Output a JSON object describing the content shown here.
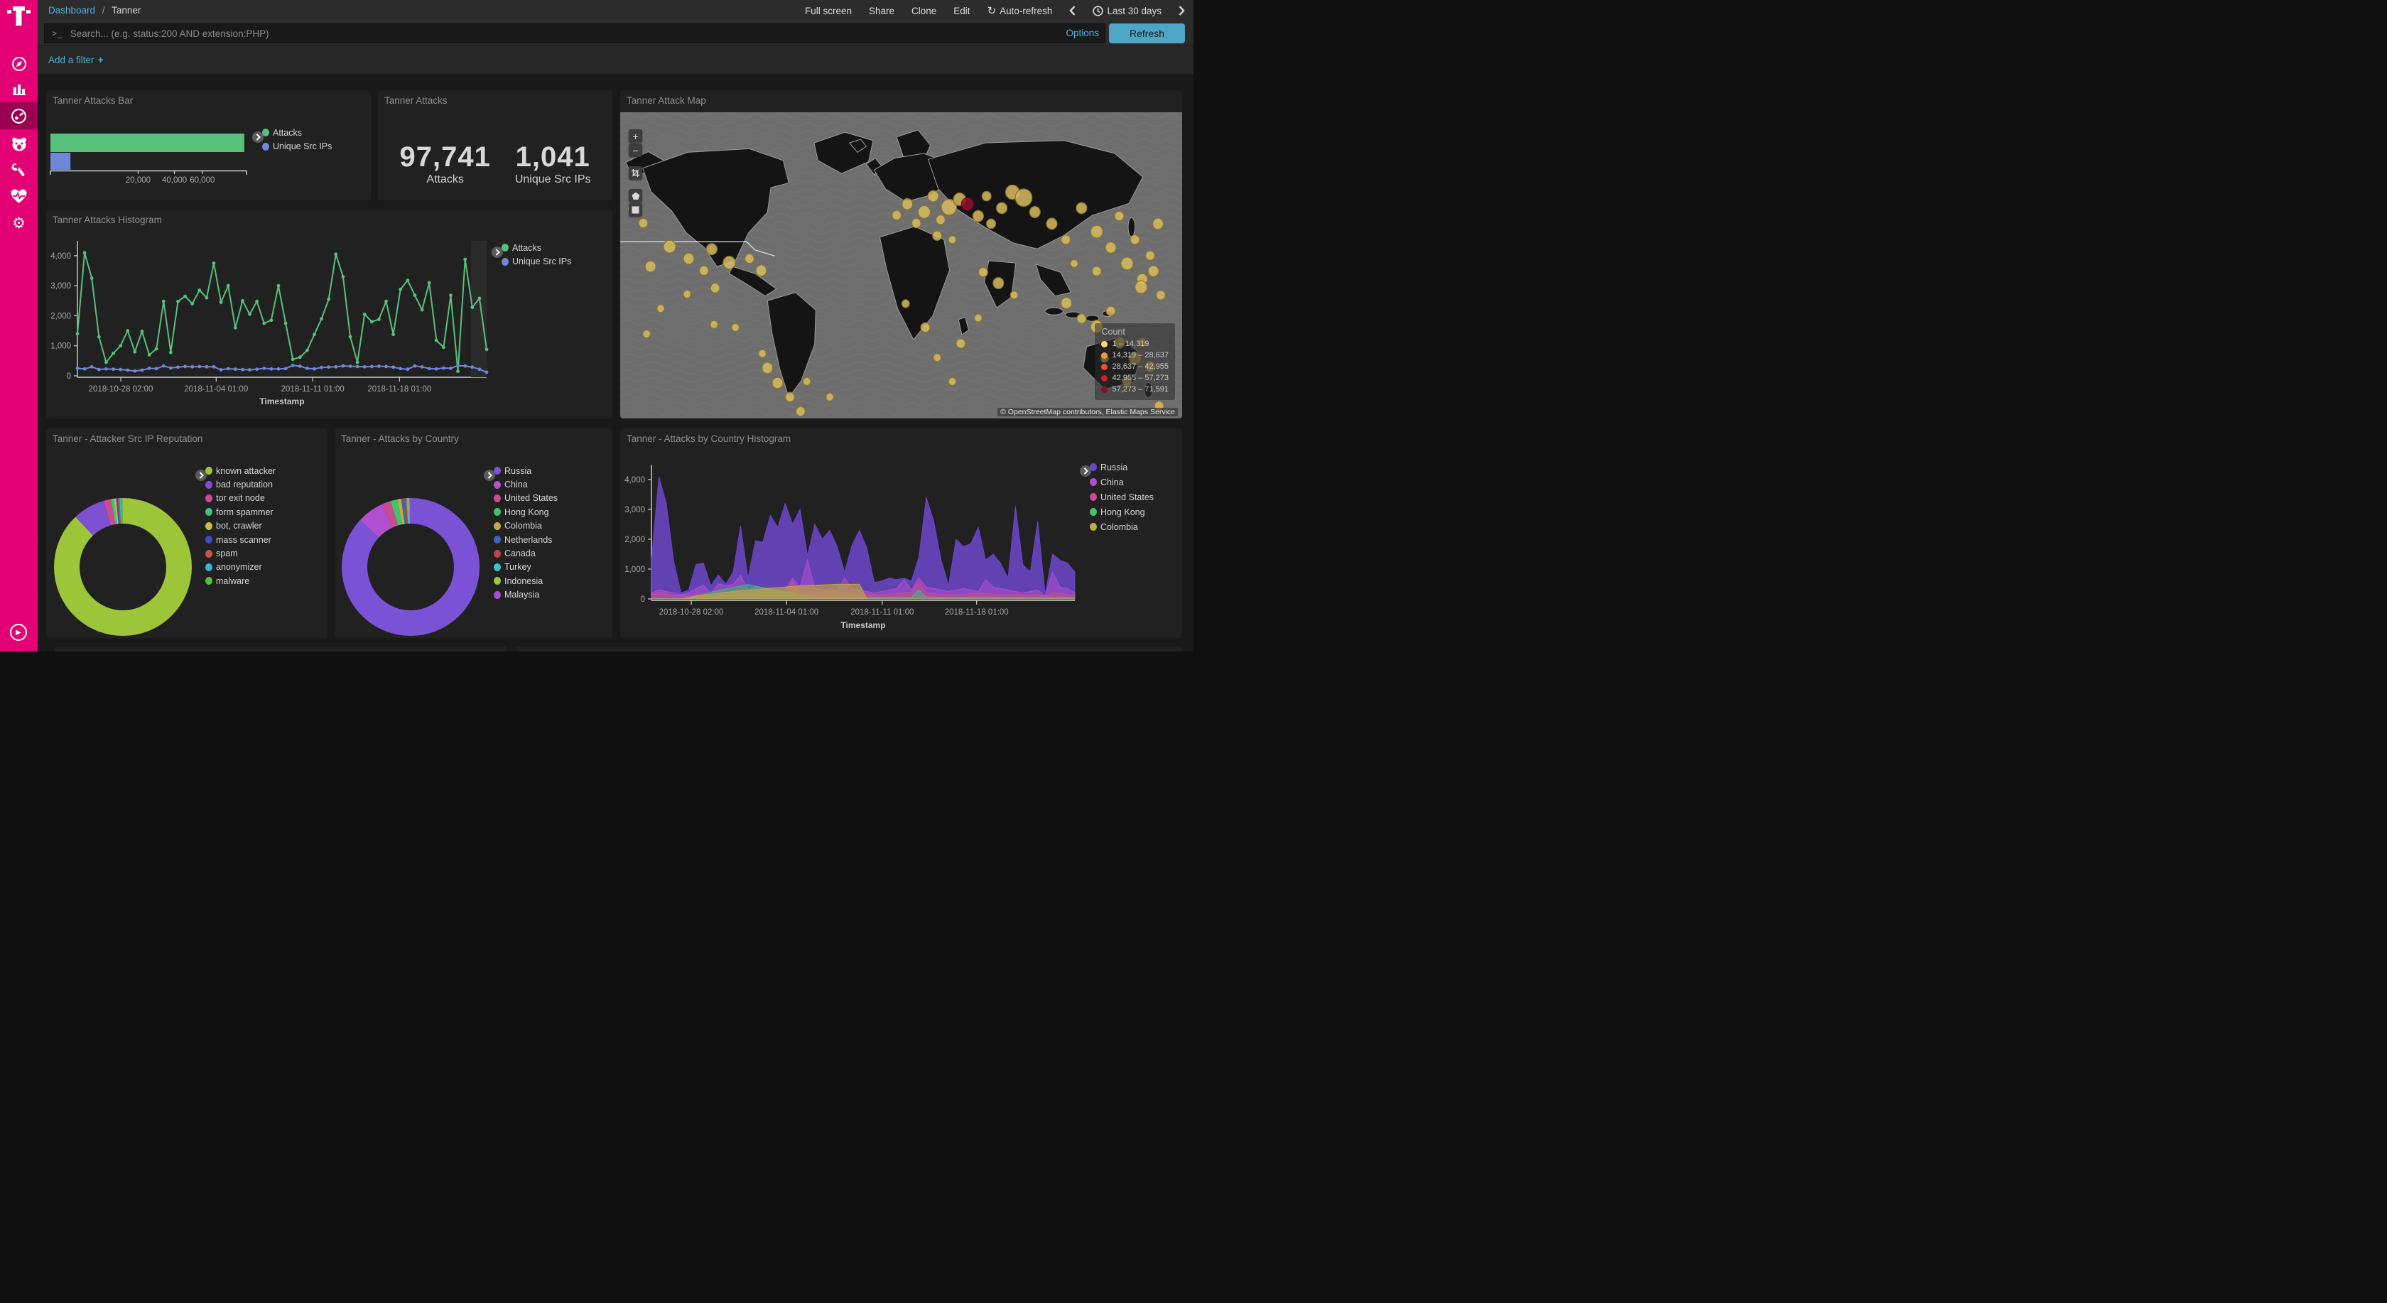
{
  "sidebar": {
    "brand": "T-Mobile",
    "items": [
      {
        "name": "discover",
        "icon": "compass-icon"
      },
      {
        "name": "visualize",
        "icon": "bar-chart-icon"
      },
      {
        "name": "dashboard",
        "icon": "gauge-icon",
        "active": true
      },
      {
        "name": "app-bear",
        "icon": "bear-icon"
      },
      {
        "name": "dev-tools",
        "icon": "wrench-icon"
      },
      {
        "name": "monitoring",
        "icon": "heartbeat-icon"
      },
      {
        "name": "management",
        "icon": "gear-icon"
      }
    ],
    "collapse": "play-icon"
  },
  "topbar": {
    "breadcrumb": {
      "root": "Dashboard",
      "sep": "/",
      "current": "Tanner"
    },
    "menu": [
      "Full screen",
      "Share",
      "Clone",
      "Edit"
    ],
    "auto_refresh": "Auto-refresh",
    "time_range": "Last 30 days"
  },
  "search": {
    "prompt": ">_",
    "placeholder": "Search... (e.g. status:200 AND extension:PHP)",
    "options_label": "Options",
    "refresh_label": "Refresh"
  },
  "filter_bar": {
    "add_filter_label": "Add a filter",
    "plus": "+"
  },
  "panels": {
    "bar_title": "Tanner Attacks Bar",
    "metric_title": "Tanner Attacks",
    "map_title": "Tanner Attack Map",
    "hist_title": "Tanner Attacks Histogram",
    "pie1_title": "Tanner - Attacker Src IP Reputation",
    "pie2_title": "Tanner - Attacks by Country",
    "area_title": "Tanner - Attacks by Country Histogram"
  },
  "colors": {
    "accent": "#e20074",
    "link": "#4fb0d6",
    "refresh_btn": "#4fa5c5",
    "attacks": "#57c17b",
    "unique": "#6f87d8"
  },
  "chart_data": {
    "attacks_bar": {
      "type": "bar",
      "orientation": "horizontal",
      "scale": "sqrt",
      "xmax": 100000,
      "series": [
        {
          "name": "Attacks",
          "color": "#57c17b",
          "value": 97741
        },
        {
          "name": "Unique Src IPs",
          "color": "#6f87d8",
          "value": 1041
        }
      ],
      "xticks": [
        {
          "label": "20,000",
          "value": 20000
        },
        {
          "label": "40,000",
          "value": 40000
        },
        {
          "label": "60,000",
          "value": 60000
        }
      ]
    },
    "attacks_metric": {
      "type": "metric",
      "items": [
        {
          "value": "97,741",
          "label": "Attacks"
        },
        {
          "value": "1,041",
          "label": "Unique Src IPs"
        }
      ]
    },
    "attack_map": {
      "type": "map",
      "legend_title": "Count",
      "legend": [
        {
          "label": "1 – 14,319",
          "color": "#f2d977"
        },
        {
          "label": "14,319 – 28,637",
          "color": "#f59742"
        },
        {
          "label": "28,637 – 42,955",
          "color": "#f04e33"
        },
        {
          "label": "42,955 – 57,273",
          "color": "#cc1f2e"
        },
        {
          "label": "57,273 – 71,591",
          "color": "#8d0d22"
        }
      ],
      "attribution": "© OpenStreetMap contributors, Elastic Maps Service",
      "bubbles": [
        [
          2,
          31.5,
          5
        ],
        [
          4.1,
          36.2,
          6
        ],
        [
          5.4,
          50.4,
          7
        ],
        [
          8.8,
          43.9,
          8
        ],
        [
          12.2,
          47.8,
          7
        ],
        [
          14.9,
          51.7,
          6
        ],
        [
          16.3,
          44.7,
          7
        ],
        [
          19.4,
          49.1,
          8
        ],
        [
          23,
          47.8,
          6
        ],
        [
          25.1,
          51.7,
          7
        ],
        [
          16.9,
          57.4,
          6
        ],
        [
          11.9,
          59.4,
          5
        ],
        [
          7.2,
          64.1,
          5
        ],
        [
          4.7,
          72.4,
          5
        ],
        [
          16.7,
          69.3,
          5
        ],
        [
          20.5,
          70.3,
          5
        ],
        [
          25.3,
          78.8,
          5
        ],
        [
          26.2,
          83.5,
          7
        ],
        [
          28,
          88.4,
          7
        ],
        [
          30.2,
          93,
          6
        ],
        [
          32.1,
          97.7,
          6
        ],
        [
          33.2,
          87.9,
          5
        ],
        [
          37.3,
          93,
          5
        ],
        [
          49.2,
          33.6,
          6
        ],
        [
          51.1,
          30,
          7
        ],
        [
          52.7,
          36.2,
          6
        ],
        [
          54.1,
          32.6,
          8
        ],
        [
          55.7,
          27.4,
          7
        ],
        [
          57,
          35.1,
          6
        ],
        [
          58.5,
          31,
          10
        ],
        [
          60.4,
          28.4,
          8
        ],
        [
          61.8,
          30,
          8,
          "#8e0f2e"
        ],
        [
          63.7,
          33.9,
          7
        ],
        [
          65.2,
          27.4,
          6
        ],
        [
          66,
          36.4,
          6
        ],
        [
          67.9,
          31.3,
          7
        ],
        [
          69.8,
          26.1,
          9
        ],
        [
          71.8,
          27.9,
          11
        ],
        [
          73.8,
          32.6,
          7
        ],
        [
          56.4,
          40.3,
          6
        ],
        [
          59.1,
          41.6,
          5
        ],
        [
          50.8,
          62.5,
          5
        ],
        [
          54.3,
          70.3,
          6
        ],
        [
          56.4,
          80.1,
          5
        ],
        [
          59.1,
          87.9,
          5
        ],
        [
          60.6,
          75.5,
          6
        ],
        [
          63.7,
          67.2,
          5
        ],
        [
          64.6,
          52.2,
          6
        ],
        [
          67.3,
          55.8,
          7
        ],
        [
          70.1,
          59.7,
          5
        ],
        [
          76.8,
          36.4,
          7
        ],
        [
          79.3,
          41.6,
          6
        ],
        [
          82.1,
          31.3,
          7
        ],
        [
          84.8,
          39,
          8
        ],
        [
          87.3,
          44.2,
          7
        ],
        [
          88.8,
          33.9,
          6
        ],
        [
          90.2,
          49.4,
          8
        ],
        [
          91.6,
          41.6,
          6
        ],
        [
          92.9,
          54.5,
          7
        ],
        [
          94.3,
          46.8,
          6
        ],
        [
          95.7,
          36.4,
          7
        ],
        [
          84.8,
          51.9,
          6
        ],
        [
          80.8,
          49.4,
          5
        ],
        [
          79.4,
          62.3,
          7
        ],
        [
          82.1,
          67.4,
          6
        ],
        [
          84.8,
          70,
          8
        ],
        [
          87.3,
          64.9,
          6
        ],
        [
          88.9,
          75.2,
          7
        ],
        [
          91.6,
          80.4,
          8
        ],
        [
          92.9,
          75.2,
          6
        ],
        [
          94.3,
          83,
          7
        ],
        [
          90.2,
          88.1,
          6
        ],
        [
          86.2,
          80.4,
          5
        ],
        [
          92.7,
          57.1,
          8
        ],
        [
          94.9,
          51.9,
          7
        ],
        [
          96.2,
          59.7,
          6
        ],
        [
          95.9,
          95.9,
          6
        ]
      ]
    },
    "attacks_histogram": {
      "type": "line",
      "xlabel": "Timestamp",
      "yticks": [
        {
          "label": "0",
          "value": 0
        },
        {
          "label": "1,000",
          "value": 1000
        },
        {
          "label": "2,000",
          "value": 2000
        },
        {
          "label": "3,000",
          "value": 3000
        },
        {
          "label": "4,000",
          "value": 4000
        }
      ],
      "ymax": 4400,
      "xticks": [
        {
          "label": "2018-10-28 02:00",
          "pos": 0.106
        },
        {
          "label": "2018-11-04 01:00",
          "pos": 0.339
        },
        {
          "label": "2018-11-11 01:00",
          "pos": 0.575
        },
        {
          "label": "2018-11-18 01:00",
          "pos": 0.787
        }
      ],
      "series": [
        {
          "name": "Attacks",
          "color": "#57c17b",
          "values": [
            1400,
            4100,
            3250,
            1300,
            450,
            750,
            1000,
            1500,
            800,
            1480,
            700,
            900,
            2480,
            780,
            2480,
            2650,
            2400,
            2850,
            2600,
            3750,
            2450,
            3000,
            1600,
            2500,
            2050,
            2480,
            1750,
            1850,
            3000,
            1750,
            550,
            620,
            850,
            1380,
            1900,
            2550,
            4050,
            3300,
            1300,
            450,
            2050,
            1800,
            1880,
            2480,
            1380,
            2880,
            3180,
            2680,
            2200,
            3100,
            1180,
            950,
            2680,
            150,
            3880,
            2280,
            2580,
            880
          ]
        },
        {
          "name": "Unique Src IPs",
          "color": "#6f87d8",
          "values": [
            250,
            230,
            300,
            210,
            230,
            220,
            210,
            190,
            160,
            190,
            250,
            240,
            330,
            260,
            290,
            310,
            300,
            310,
            300,
            300,
            200,
            240,
            220,
            210,
            200,
            220,
            250,
            230,
            230,
            240,
            350,
            320,
            250,
            230,
            280,
            290,
            300,
            330,
            320,
            310,
            300,
            310,
            320,
            310,
            290,
            240,
            220,
            330,
            300,
            240,
            230,
            260,
            250,
            340,
            330,
            290,
            220,
            120
          ]
        }
      ]
    },
    "ip_reputation_pie": {
      "type": "pie",
      "donut": true,
      "slices": [
        {
          "label": "known attacker",
          "color": "#9dc53a",
          "pct": 88.0
        },
        {
          "label": "bad reputation",
          "color": "#7e4fd0",
          "pct": 7.6
        },
        {
          "label": "tor exit node",
          "color": "#cc4b8d",
          "pct": 1.7
        },
        {
          "label": "form spammer",
          "color": "#3dc27e",
          "pct": 0.7
        },
        {
          "label": "bot, crawler",
          "color": "#c5c03b",
          "pct": 0.5
        },
        {
          "label": "mass scanner",
          "color": "#3b4ec4",
          "pct": 0.4
        },
        {
          "label": "spam",
          "color": "#c2573b",
          "pct": 0.4
        },
        {
          "label": "anonymizer",
          "color": "#41b0d4",
          "pct": 0.4
        },
        {
          "label": "malware",
          "color": "#52c03a",
          "pct": 0.3
        }
      ]
    },
    "country_pie": {
      "type": "pie",
      "donut": true,
      "slices": [
        {
          "label": "Russia",
          "color": "#7b52d6",
          "pct": 87.0
        },
        {
          "label": "China",
          "color": "#b050d0",
          "pct": 6.2
        },
        {
          "label": "United States",
          "color": "#cc4a8e",
          "pct": 2.2
        },
        {
          "label": "Hong Kong",
          "color": "#3ec46d",
          "pct": 1.6
        },
        {
          "label": "Colombia",
          "color": "#c4a93c",
          "pct": 0.9
        },
        {
          "label": "Netherlands",
          "color": "#3c63c6",
          "pct": 0.7
        },
        {
          "label": "Canada",
          "color": "#bf4440",
          "pct": 0.5
        },
        {
          "label": "Turkey",
          "color": "#3cc6c6",
          "pct": 0.4
        },
        {
          "label": "Indonesia",
          "color": "#96c93e",
          "pct": 0.3
        },
        {
          "label": "Malaysia",
          "color": "#a44fd3",
          "pct": 0.2
        }
      ]
    },
    "country_histogram": {
      "type": "area",
      "xlabel": "Timestamp",
      "yticks": [
        {
          "label": "0",
          "value": 0
        },
        {
          "label": "1,000",
          "value": 1000
        },
        {
          "label": "2,000",
          "value": 2000
        },
        {
          "label": "3,000",
          "value": 3000
        },
        {
          "label": "4,000",
          "value": 4000
        }
      ],
      "ymax": 4400,
      "xticks": [
        {
          "label": "2018-10-28 02:00",
          "pos": 0.094
        },
        {
          "label": "2018-11-04 01:00",
          "pos": 0.319
        },
        {
          "label": "2018-11-11 01:00",
          "pos": 0.545
        },
        {
          "label": "2018-11-18 01:00",
          "pos": 0.768
        }
      ],
      "series": [
        {
          "name": "Russia",
          "color": "#6d46cd",
          "opacity": 0.85,
          "values": [
            1300,
            4100,
            3200,
            1250,
            200,
            300,
            1150,
            1200,
            450,
            800,
            500,
            900,
            2450,
            700,
            1950,
            1900,
            2800,
            2400,
            3200,
            2500,
            3000,
            1450,
            2500,
            2000,
            2300,
            1750,
            900,
            1800,
            2300,
            1700,
            550,
            600,
            700,
            650,
            700,
            600,
            1400,
            3400,
            2600,
            1300,
            450,
            2000,
            1750,
            1850,
            2400,
            1300,
            1500,
            1200,
            700,
            3100,
            1150,
            900,
            2600,
            150,
            1500,
            1300,
            1200,
            900
          ]
        },
        {
          "name": "China",
          "color": "#b050d0",
          "opacity": 0.55,
          "values": [
            200,
            300,
            250,
            200,
            150,
            200,
            350,
            450,
            200,
            500,
            450,
            480,
            800,
            300,
            400,
            350,
            300,
            250,
            300,
            700,
            400,
            1300,
            350,
            300,
            250,
            300,
            700,
            350,
            300,
            250,
            200,
            250,
            300,
            350,
            650,
            300,
            700,
            400,
            350,
            300,
            250,
            300,
            350,
            300,
            250,
            650,
            400,
            350,
            300,
            250,
            200,
            250,
            300,
            100,
            900,
            400,
            350,
            200
          ]
        },
        {
          "name": "United States",
          "color": "#cc4a8e",
          "opacity": 0.55,
          "values": [
            150,
            200,
            180,
            120,
            100,
            120,
            150,
            180,
            150,
            200,
            180,
            160,
            200,
            150,
            180,
            200,
            250,
            200,
            180,
            600,
            200,
            180,
            160,
            200,
            350,
            200,
            180,
            160,
            200,
            180,
            150,
            140,
            160,
            180,
            200,
            220,
            600,
            200,
            180,
            160,
            150,
            140,
            160,
            180,
            200,
            180,
            160,
            150,
            140,
            160,
            150,
            140,
            160,
            80,
            200,
            180,
            160,
            100
          ]
        },
        {
          "name": "Hong Kong",
          "color": "#3ec46d",
          "opacity": 0.5,
          "values": [
            10,
            10,
            10,
            10,
            10,
            20,
            80,
            150,
            220,
            280,
            330,
            380,
            430,
            480,
            430,
            380,
            330,
            280,
            230,
            180,
            130,
            80,
            60,
            60,
            60,
            60,
            60,
            60,
            60,
            60,
            60,
            60,
            60,
            60,
            60,
            60,
            300,
            60,
            60,
            60,
            60,
            60,
            60,
            60,
            60,
            60,
            60,
            60,
            60,
            60,
            60,
            60,
            60,
            40,
            60,
            60,
            60,
            40
          ]
        },
        {
          "name": "Colombia",
          "color": "#c4a93c",
          "opacity": 0.65,
          "values": [
            0,
            0,
            0,
            0,
            0,
            50,
            100,
            130,
            160,
            190,
            220,
            250,
            280,
            300,
            320,
            340,
            360,
            380,
            400,
            420,
            440,
            450,
            460,
            470,
            480,
            490,
            490,
            490,
            490,
            0,
            0,
            0,
            0,
            0,
            0,
            0,
            0,
            0,
            0,
            0,
            0,
            0,
            0,
            0,
            0,
            0,
            0,
            0,
            0,
            0,
            0,
            0,
            0,
            0,
            0,
            0,
            0,
            0
          ]
        }
      ]
    }
  }
}
